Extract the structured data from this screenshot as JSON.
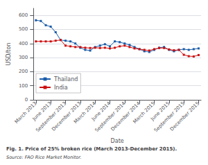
{
  "chart_data": {
    "type": "line",
    "title": "Fig. 1. Price of 25% broken rice (March 2013-December 2015).",
    "subtitle": "Source: FAO Rice Market Monitor.",
    "xlabel": "Date",
    "ylabel": "USD/ton",
    "categories": [
      "March 2013",
      null,
      null,
      "June 2013",
      null,
      null,
      "September 2013",
      null,
      null,
      "December 2013",
      null,
      null,
      "March 2014",
      null,
      null,
      "June 2014",
      null,
      null,
      "September 2014",
      null,
      null,
      "December 2014",
      null,
      null,
      "March 2015",
      null,
      null,
      "June 2015",
      null,
      null,
      "September 2015",
      null,
      null,
      "December 2015"
    ],
    "series": [
      {
        "name": "Thailand",
        "color": "#1a5ca8",
        "marker": "square",
        "line_style": "solid",
        "values": [
          565,
          560,
          530,
          520,
          480,
          425,
          420,
          415,
          400,
          370,
          355,
          350,
          375,
          385,
          395,
          380,
          415,
          410,
          400,
          390,
          375,
          360,
          345,
          340,
          355,
          370,
          375,
          355,
          345,
          355,
          360,
          355,
          360,
          365
        ]
      },
      {
        "name": "India",
        "color": "#cc1111",
        "marker": "square",
        "line_style": "solid",
        "values": [
          415,
          415,
          415,
          415,
          420,
          425,
          385,
          380,
          375,
          375,
          370,
          368,
          370,
          368,
          370,
          365,
          370,
          380,
          385,
          375,
          365,
          360,
          355,
          350,
          360,
          368,
          368,
          358,
          352,
          355,
          320,
          310,
          308,
          318
        ]
      }
    ],
    "ylim": [
      0,
      650
    ],
    "yticks": [
      0,
      100,
      200,
      300,
      400,
      500,
      600
    ],
    "grid": true,
    "legend": "lower left"
  }
}
